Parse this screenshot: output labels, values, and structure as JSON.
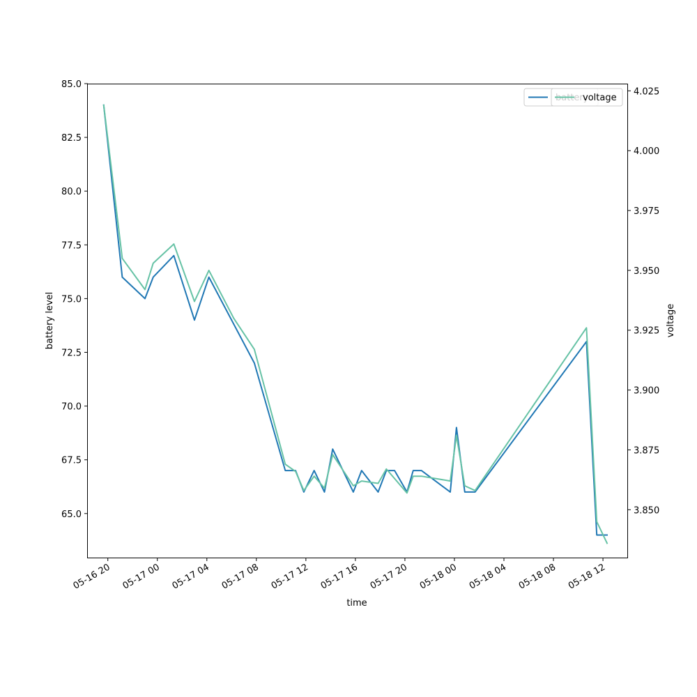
{
  "chart_data": {
    "type": "line",
    "xlabel": "time",
    "ylabel_left": "battery level",
    "ylabel_right": "voltage",
    "x_ticks": [
      "05-16 20",
      "05-17 00",
      "05-17 04",
      "05-17 08",
      "05-17 12",
      "05-17 16",
      "05-17 20",
      "05-18 00",
      "05-18 04",
      "05-18 08",
      "05-18 12"
    ],
    "x_range": [
      "05-16 18:23",
      "05-18 13:58"
    ],
    "y_left_ticks": [
      "65.0",
      "67.5",
      "70.0",
      "72.5",
      "75.0",
      "77.5",
      "80.0",
      "82.5",
      "85.0"
    ],
    "y_left_range": [
      62.95,
      85.0
    ],
    "y_right_ticks": [
      "3.850",
      "3.875",
      "3.900",
      "3.925",
      "3.950",
      "3.975",
      "4.000",
      "4.025"
    ],
    "y_right_range": [
      3.83,
      4.028
    ],
    "legend": {
      "placement": "top-right",
      "entries": [
        "battery",
        "voltage"
      ]
    },
    "series": [
      {
        "name": "battery",
        "axis": "left",
        "color": "#1f77b4",
        "points": [
          [
            "05-16 19:40",
            84
          ],
          [
            "05-16 21:10",
            76
          ],
          [
            "05-16 23:00",
            75
          ],
          [
            "05-16 23:40",
            76
          ],
          [
            "05-17 01:20",
            77
          ],
          [
            "05-17 03:00",
            74
          ],
          [
            "05-17 04:10",
            76
          ],
          [
            "05-17 07:50",
            72
          ],
          [
            "05-17 10:20",
            67
          ],
          [
            "05-17 11:10",
            67
          ],
          [
            "05-17 11:50",
            66
          ],
          [
            "05-17 12:40",
            67
          ],
          [
            "05-17 13:30",
            66
          ],
          [
            "05-17 14:10",
            68
          ],
          [
            "05-17 15:50",
            66
          ],
          [
            "05-17 16:30",
            67
          ],
          [
            "05-17 17:50",
            66
          ],
          [
            "05-17 18:30",
            67
          ],
          [
            "05-17 19:10",
            67
          ],
          [
            "05-17 20:10",
            66
          ],
          [
            "05-17 20:40",
            67
          ],
          [
            "05-17 21:20",
            67
          ],
          [
            "05-17 23:40",
            66
          ],
          [
            "05-18 00:10",
            69
          ],
          [
            "05-18 00:50",
            66
          ],
          [
            "05-18 01:40",
            66
          ],
          [
            "05-18 10:40",
            73
          ],
          [
            "05-18 11:30",
            64
          ],
          [
            "05-18 12:20",
            64
          ]
        ]
      },
      {
        "name": "voltage",
        "axis": "right",
        "color": "#66c2a5",
        "points": [
          [
            "05-16 19:40",
            4.019
          ],
          [
            "05-16 21:10",
            3.955
          ],
          [
            "05-16 23:00",
            3.942
          ],
          [
            "05-16 23:40",
            3.953
          ],
          [
            "05-17 01:20",
            3.961
          ],
          [
            "05-17 03:00",
            3.937
          ],
          [
            "05-17 04:10",
            3.95
          ],
          [
            "05-17 06:10",
            3.93
          ],
          [
            "05-17 07:50",
            3.917
          ],
          [
            "05-17 10:20",
            3.869
          ],
          [
            "05-17 11:10",
            3.866
          ],
          [
            "05-17 11:50",
            3.858
          ],
          [
            "05-17 12:40",
            3.864
          ],
          [
            "05-17 13:30",
            3.859
          ],
          [
            "05-17 14:10",
            3.873
          ],
          [
            "05-17 15:50",
            3.86
          ],
          [
            "05-17 16:30",
            3.862
          ],
          [
            "05-17 17:50",
            3.861
          ],
          [
            "05-17 18:30",
            3.867
          ],
          [
            "05-17 20:10",
            3.857
          ],
          [
            "05-17 20:40",
            3.864
          ],
          [
            "05-17 21:20",
            3.864
          ],
          [
            "05-17 23:40",
            3.862
          ],
          [
            "05-18 00:10",
            3.881
          ],
          [
            "05-18 00:50",
            3.86
          ],
          [
            "05-18 01:40",
            3.858
          ],
          [
            "05-18 10:40",
            3.926
          ],
          [
            "05-18 11:30",
            3.845
          ],
          [
            "05-18 12:20",
            3.836
          ]
        ]
      }
    ]
  }
}
